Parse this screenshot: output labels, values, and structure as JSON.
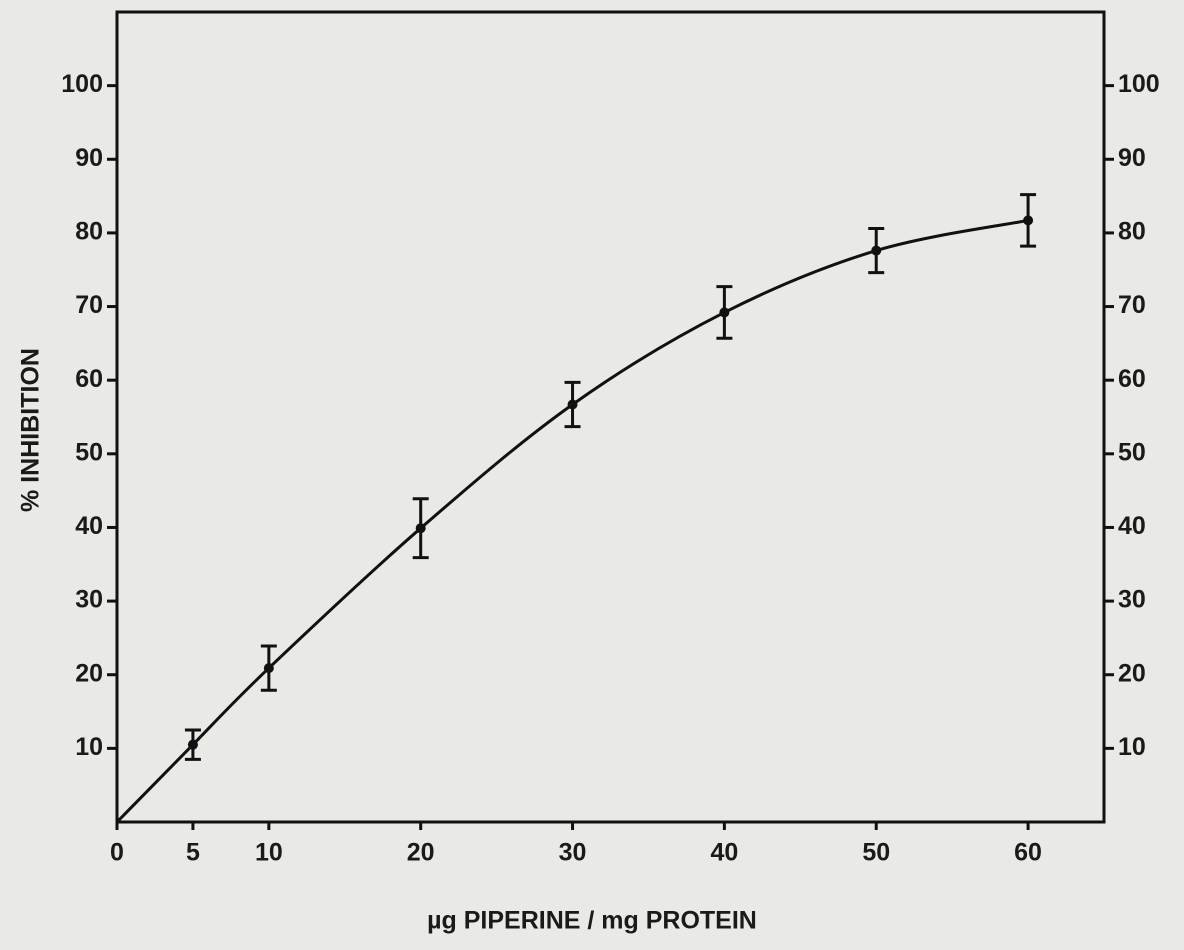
{
  "chart_data": {
    "type": "line",
    "x_label": "µg PIPERINE / mg PROTEIN",
    "y_label": "% INHIBITION",
    "x": [
      5,
      10,
      20,
      30,
      40,
      50,
      60
    ],
    "series": [
      {
        "color": "#111111",
        "values": [
          10.5,
          20.9,
          39.9,
          56.7,
          69.2,
          77.6,
          81.7
        ],
        "errors": [
          2,
          3,
          4,
          3,
          3.5,
          3,
          3.5
        ]
      }
    ],
    "xlim": [
      0,
      65
    ],
    "ylim": [
      0,
      110
    ],
    "xticks": [
      0,
      5,
      10,
      20,
      30,
      40,
      50,
      60
    ],
    "yticks": [
      10,
      20,
      30,
      40,
      50,
      60,
      70,
      80,
      90,
      100
    ],
    "y2lim": [
      0,
      110
    ],
    "y2ticks": [
      10,
      20,
      30,
      40,
      50,
      60,
      70,
      80,
      90,
      100
    ]
  }
}
